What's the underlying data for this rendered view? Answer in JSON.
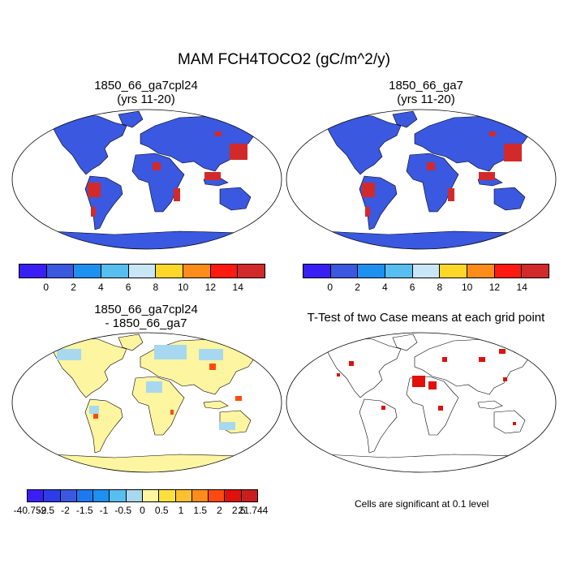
{
  "title": "MAM FCH4TOCO2 (gC/m^2/y)",
  "panels": {
    "p1": {
      "title_line1": "1850_66_ga7cpl24",
      "title_line2": "(yrs 11-20)"
    },
    "p2": {
      "title_line1": "1850_66_ga7",
      "title_line2": "(yrs 11-20)"
    },
    "p3": {
      "title_line1": "1850_66_ga7cpl24",
      "title_line2": "- 1850_66_ga7"
    },
    "p4": {
      "title_line1": "T-Test of two Case means at each grid point"
    }
  },
  "colorbar_abs": {
    "colors": [
      "#3a1ff5",
      "#3a58e0",
      "#1e90f0",
      "#58bef0",
      "#c8e6f5",
      "#fdd72a",
      "#fd8c1a",
      "#fe1a10",
      "#d22a2a"
    ],
    "labels": [
      "0",
      "2",
      "4",
      "6",
      "8",
      "10",
      "12",
      "14"
    ]
  },
  "colorbar_diff": {
    "colors": [
      "#3a1ff5",
      "#2b3ce8",
      "#3a58e0",
      "#1e78f0",
      "#1e90f0",
      "#58bef0",
      "#a8d8f0",
      "#fdf5a0",
      "#fde040",
      "#fdc030",
      "#fd8c1a",
      "#fe4a10",
      "#e0100a",
      "#c81e1e"
    ],
    "labels": [
      "-40.759",
      "-2.5",
      "-2",
      "-1.5",
      "-1",
      "-0.5",
      "0",
      "0.5",
      "1",
      "1.5",
      "2",
      "2.5",
      "21.744"
    ]
  },
  "note": "Cells are significant at 0.1 level",
  "map_colors": {
    "p1_fill": "#3a58e0",
    "p1_hot": "#d22a2a",
    "p3_fill": "#fdf5a0",
    "p3_alt": "#a8d8f0",
    "p4_sig": "#e0100a"
  }
}
